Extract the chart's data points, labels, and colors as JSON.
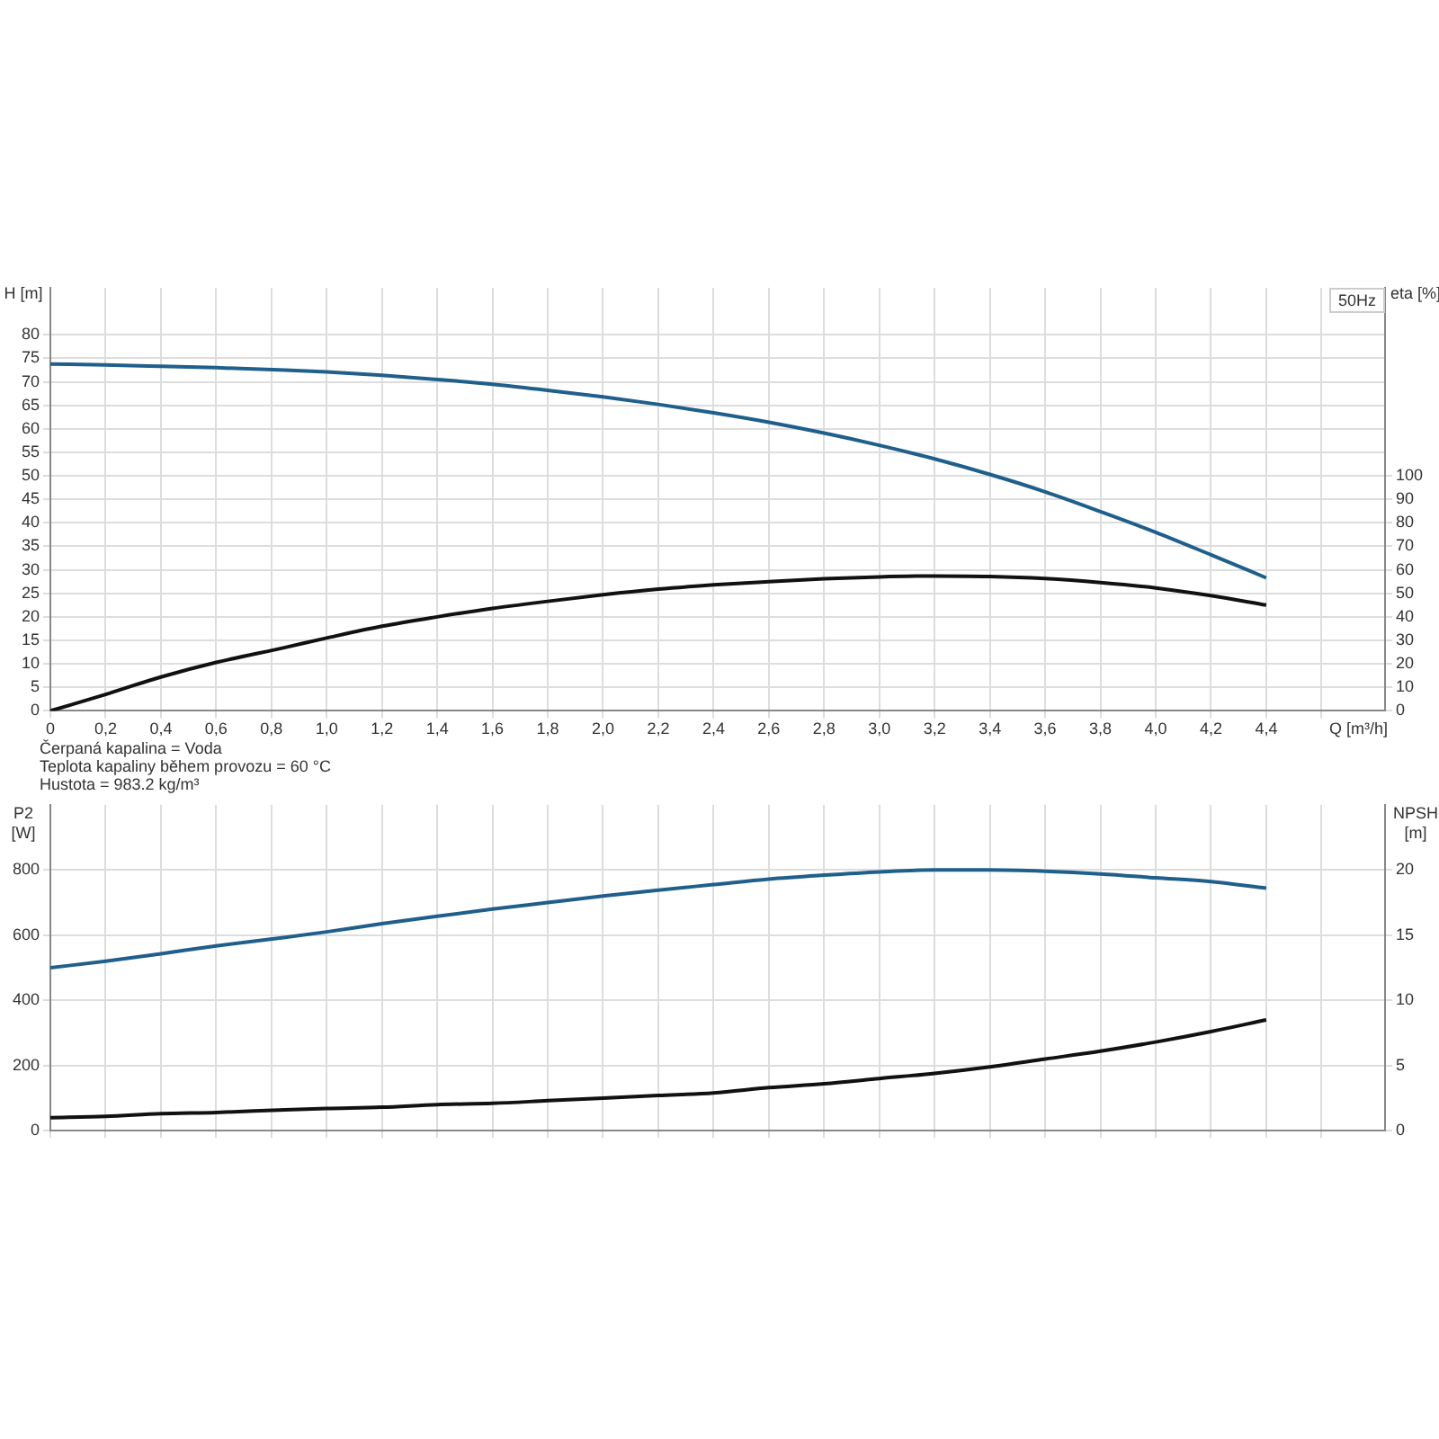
{
  "chart_data": [
    {
      "type": "line",
      "xlabel": "Q [m³/h]",
      "ylabel": "H [m]",
      "y2label": "eta [%]",
      "annotations": [
        "50Hz",
        "Čerpaná kapalina = Voda",
        "Teplota kapaliny během provozu = 60 °C",
        "Hustota = 983.2 kg/m³"
      ],
      "x": [
        0,
        0.2,
        0.4,
        0.6,
        0.85,
        1.0,
        1.2,
        1.4,
        1.6,
        1.8,
        2.0,
        2.2,
        2.4,
        2.6,
        2.8,
        3.0,
        3.2,
        3.4,
        3.6,
        3.8,
        4.0,
        4.2,
        4.4
      ],
      "series": [
        {
          "color": "#1f5f8b",
          "values": [
            73.8,
            73.6,
            73.3,
            73.0,
            72.5,
            72.1,
            71.4,
            70.5,
            69.5,
            68.2,
            66.8,
            65.2,
            63.4,
            61.4,
            59.1,
            56.5,
            53.6,
            50.3,
            46.6,
            42.4,
            38.0,
            33.2,
            28.3
          ]
        },
        {
          "color": "#111111",
          "axis": "y2",
          "values": [
            0,
            7,
            14.4,
            20.6,
            27,
            31,
            36,
            40,
            43.6,
            46.6,
            49.4,
            51.8,
            53.6,
            55,
            56.2,
            57,
            57.4,
            57.2,
            56.3,
            54.6,
            52.3,
            49,
            45
          ]
        }
      ],
      "xlim": [
        0,
        4.83
      ],
      "xticks": [
        0,
        {
          "value": 0.2,
          "label": "0,2"
        },
        {
          "value": 0.4,
          "label": "0,4"
        },
        {
          "value": 0.6,
          "label": "0,6"
        },
        {
          "value": 0.8,
          "label": "0,8"
        },
        {
          "value": 1.0,
          "label": "1,0"
        },
        {
          "value": 1.2,
          "label": "1,2"
        },
        {
          "value": 1.4,
          "label": "1,4"
        },
        {
          "value": 1.6,
          "label": "1,6"
        },
        {
          "value": 1.8,
          "label": "1,8"
        },
        {
          "value": 2.0,
          "label": "2,0"
        },
        {
          "value": 2.2,
          "label": "2,2"
        },
        {
          "value": 2.4,
          "label": "2,4"
        },
        {
          "value": 2.6,
          "label": "2,6"
        },
        {
          "value": 2.8,
          "label": "2,8"
        },
        {
          "value": 3.0,
          "label": "3,0"
        },
        {
          "value": 3.2,
          "label": "3,2"
        },
        {
          "value": 3.4,
          "label": "3,4"
        },
        {
          "value": 3.6,
          "label": "3,6"
        },
        {
          "value": 3.8,
          "label": "3,8"
        },
        {
          "value": 4.0,
          "label": "4,0"
        },
        {
          "value": 4.2,
          "label": "4,2"
        },
        {
          "value": 4.4,
          "label": "4,4"
        },
        {
          "value": 4.6,
          "label": null
        }
      ],
      "ylim": [
        0,
        90
      ],
      "yticks": [
        0,
        5,
        10,
        15,
        20,
        25,
        30,
        35,
        40,
        45,
        50,
        55,
        60,
        65,
        70,
        75,
        80
      ],
      "y2lim": [
        0,
        180
      ],
      "y2ticks": [
        0,
        10,
        20,
        30,
        40,
        50,
        60,
        70,
        80,
        90,
        100
      ],
      "grid": true,
      "legend": false
    },
    {
      "type": "line",
      "ylabel": "P2 [W]",
      "y2label": "NPSH [m]",
      "x": [
        0,
        0.2,
        0.4,
        0.6,
        0.85,
        1.0,
        1.2,
        1.4,
        1.6,
        1.8,
        2.0,
        2.2,
        2.4,
        2.6,
        2.8,
        3.0,
        3.2,
        3.4,
        3.6,
        3.8,
        4.0,
        4.2,
        4.4
      ],
      "series": [
        {
          "color": "#1f5f8b",
          "values": [
            500,
            520,
            543,
            567,
            593,
            610,
            635,
            658,
            680,
            700,
            720,
            738,
            755,
            772,
            784,
            794,
            800,
            800,
            796,
            788,
            776,
            764,
            744
          ]
        },
        {
          "color": "#111111",
          "axis": "y2",
          "values": [
            1.0,
            1.1,
            1.3,
            1.4,
            1.6,
            1.7,
            1.8,
            2.0,
            2.1,
            2.3,
            2.5,
            2.7,
            2.9,
            3.3,
            3.6,
            4.0,
            4.4,
            4.9,
            5.5,
            6.1,
            6.8,
            7.6,
            8.5
          ]
        }
      ],
      "xlim": [
        0,
        4.83
      ],
      "xticks": [
        0,
        0.2,
        0.4,
        0.6,
        0.8,
        1.0,
        1.2,
        1.4,
        1.6,
        1.8,
        2.0,
        2.2,
        2.4,
        2.6,
        2.8,
        3.0,
        3.2,
        3.4,
        3.6,
        3.8,
        4.0,
        4.2,
        4.4,
        4.6
      ],
      "ylim": [
        0,
        1000
      ],
      "yticks": [
        0,
        200,
        400,
        600,
        800
      ],
      "y2lim": [
        0,
        25
      ],
      "y2ticks": [
        0,
        5,
        10,
        15,
        20
      ],
      "grid": true,
      "legend": false,
      "tick_labels": "y"
    }
  ]
}
